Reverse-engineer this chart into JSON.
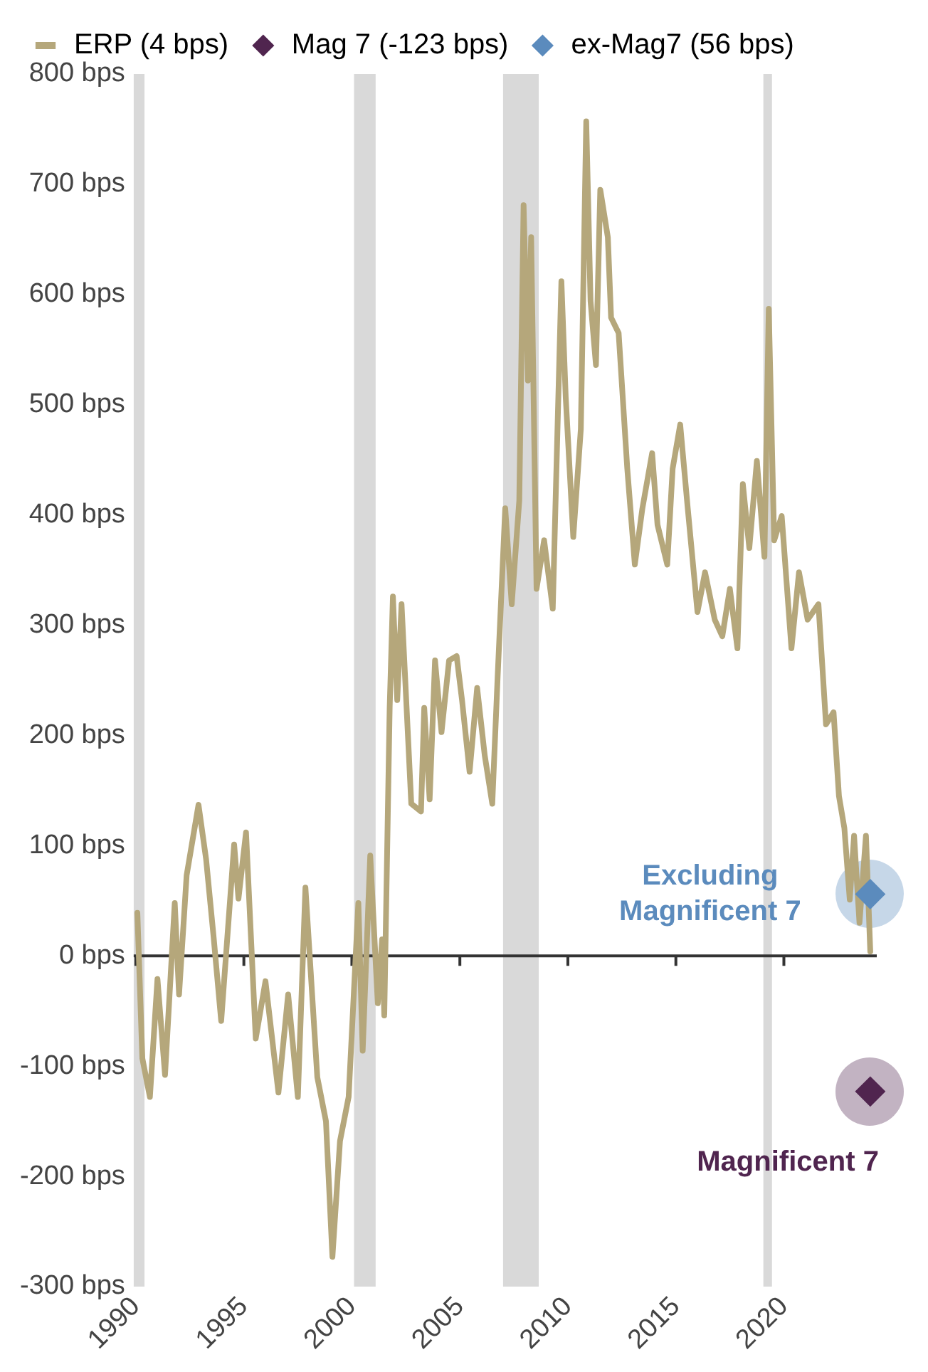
{
  "chart_data": {
    "type": "line",
    "xlim": [
      1989.9,
      2024.3
    ],
    "xticks": [
      1990,
      1995,
      2000,
      2005,
      2010,
      2015,
      2020
    ],
    "ylim": [
      -300,
      800
    ],
    "yticks": [
      {
        "value": -300,
        "label": "-300 bps"
      },
      {
        "value": -200,
        "label": "-200 bps"
      },
      {
        "value": -100,
        "label": "-100 bps"
      },
      {
        "value": 0,
        "label": "0 bps"
      },
      {
        "value": 100,
        "label": "100 bps"
      },
      {
        "value": 200,
        "label": "200 bps"
      },
      {
        "value": 300,
        "label": "300 bps"
      },
      {
        "value": 400,
        "label": "400 bps"
      },
      {
        "value": 500,
        "label": "500 bps"
      },
      {
        "value": 600,
        "label": "600 bps"
      },
      {
        "value": 700,
        "label": "700 bps"
      },
      {
        "value": 800,
        "label": "800 bps"
      }
    ],
    "grid": false,
    "legend": "top",
    "series": [
      {
        "name": "ERP (4 bps)",
        "color": "#b5a77b",
        "marker": "none",
        "x": [
          1990.07,
          1990.3,
          1990.65,
          1991.0,
          1991.35,
          1991.8,
          1992.0,
          1992.35,
          1992.9,
          1993.25,
          1993.6,
          1993.95,
          1994.55,
          1994.75,
          1995.1,
          1995.55,
          1996.0,
          1996.6,
          1997.05,
          1997.5,
          1997.85,
          1998.4,
          1998.8,
          1999.1,
          1999.45,
          1999.85,
          2000.3,
          2000.5,
          2000.85,
          2001.2,
          2001.4,
          2001.5,
          2001.75,
          2001.9,
          2002.1,
          2002.3,
          2002.75,
          2003.2,
          2003.35,
          2003.6,
          2003.85,
          2004.15,
          2004.5,
          2004.85,
          2005.1,
          2005.45,
          2005.8,
          2006.15,
          2006.5,
          2006.75,
          2007.1,
          2007.4,
          2007.75,
          2007.95,
          2008.15,
          2008.3,
          2008.55,
          2008.9,
          2009.3,
          2009.7,
          2009.9,
          2010.25,
          2010.6,
          2010.85,
          2011.05,
          2011.3,
          2011.5,
          2011.85,
          2012.0,
          2012.35,
          2012.75,
          2013.1,
          2013.45,
          2013.9,
          2014.15,
          2014.6,
          2014.85,
          2015.2,
          2015.55,
          2016.0,
          2016.35,
          2016.8,
          2017.15,
          2017.5,
          2017.85,
          2018.1,
          2018.4,
          2018.75,
          2019.1,
          2019.3,
          2019.55,
          2019.9,
          2020.35,
          2020.7,
          2021.1,
          2021.6,
          2021.95,
          2022.3,
          2022.55,
          2022.8,
          2023.05,
          2023.25,
          2023.5,
          2023.8,
          2024.0
        ],
        "values": [
          39,
          -93,
          -128,
          -21,
          -108,
          48,
          -35,
          73,
          137,
          88,
          17,
          -59,
          101,
          52,
          112,
          -75,
          -23,
          -124,
          -35,
          -128,
          62,
          -110,
          -150,
          -273,
          -168,
          -128,
          48,
          -86,
          91,
          -43,
          15,
          -54,
          225,
          326,
          232,
          319,
          138,
          131,
          225,
          142,
          268,
          203,
          268,
          272,
          232,
          167,
          243,
          182,
          138,
          254,
          406,
          319,
          413,
          681,
          522,
          652,
          333,
          377,
          315,
          612,
          507,
          380,
          478,
          757,
          594,
          536,
          695,
          652,
          579,
          565,
          442,
          355,
          406,
          456,
          391,
          355,
          442,
          482,
          406,
          312,
          348,
          305,
          290,
          333,
          279,
          428,
          370,
          449,
          362,
          587,
          377,
          399,
          279,
          348,
          305,
          319,
          210,
          221,
          145,
          116,
          51,
          109,
          30,
          109,
          4
        ]
      },
      {
        "name": "Mag 7 (-123 bps)",
        "type": "scatter",
        "color": "#50254f",
        "marker": "diamond",
        "x": [
          2024.0
        ],
        "values": [
          -123
        ]
      },
      {
        "name": "ex-Mag7 (56 bps)",
        "type": "scatter",
        "color": "#5b8bbd",
        "marker": "diamond",
        "x": [
          2024.0
        ],
        "values": [
          56
        ]
      }
    ],
    "ref_lines": [
      {
        "axis": "y",
        "value": 0,
        "color": "#333333"
      }
    ],
    "bands": [
      {
        "axis": "x",
        "from": 1989.9,
        "to": 1990.4,
        "color": "#d9d9d9"
      },
      {
        "axis": "x",
        "from": 2000.1,
        "to": 2001.1,
        "color": "#d9d9d9"
      },
      {
        "axis": "x",
        "from": 2007.0,
        "to": 2008.65,
        "color": "#d9d9d9"
      },
      {
        "axis": "x",
        "from": 2019.05,
        "to": 2019.45,
        "color": "#d9d9d9"
      }
    ],
    "annotations": [
      {
        "text": "Excluding Magnificent 7",
        "x": 2024.0,
        "y": 56
      },
      {
        "text": "Magnificent 7",
        "x": 2024.0,
        "y": -123
      }
    ]
  }
}
